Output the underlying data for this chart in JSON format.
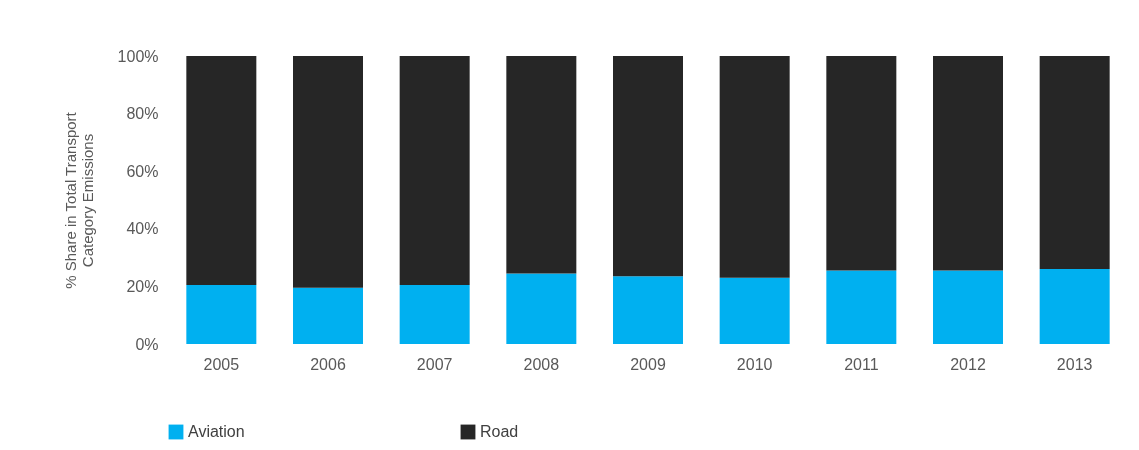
{
  "chart_data": {
    "type": "bar",
    "stacked": true,
    "ylabel": "% Share in Total Transport Category Emissions",
    "categories": [
      "2005",
      "2006",
      "2007",
      "2008",
      "2009",
      "2010",
      "2011",
      "2012",
      "2013"
    ],
    "series": [
      {
        "name": "Aviation",
        "color": "#00b0f0",
        "values": [
          20.5,
          19.5,
          20.5,
          24.5,
          23.5,
          23,
          25.5,
          25.5,
          26
        ]
      },
      {
        "name": "Road",
        "color": "#262626",
        "values": [
          79.5,
          80.5,
          79.5,
          75.5,
          76.5,
          77,
          74.5,
          74.5,
          74
        ]
      }
    ],
    "ylim": [
      0,
      100
    ],
    "yticks": [
      {
        "value": 0,
        "label": "0%"
      },
      {
        "value": 20,
        "label": "20%"
      },
      {
        "value": 40,
        "label": "40%"
      },
      {
        "value": 60,
        "label": "60%"
      },
      {
        "value": 80,
        "label": "80%"
      },
      {
        "value": 100,
        "label": "100%"
      }
    ],
    "grid": false,
    "legend": "bottom"
  }
}
